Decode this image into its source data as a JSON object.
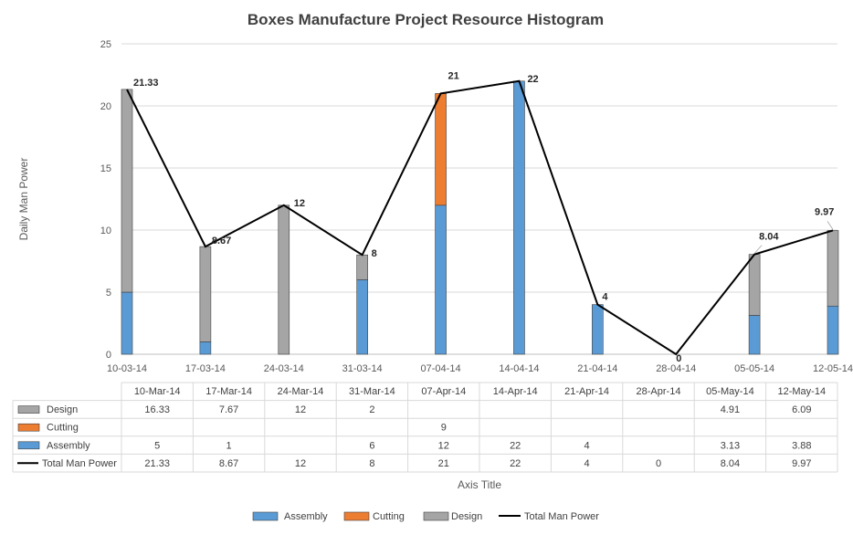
{
  "chart_data": {
    "type": "bar",
    "title": "Boxes Manufacture Project Resource Histogram",
    "ylabel": "Daily Man Power",
    "xlabel": "Axis Title",
    "ylim": [
      0,
      25
    ],
    "yticks": [
      0,
      5,
      10,
      15,
      20,
      25
    ],
    "grid": true,
    "legend_position": "bottom",
    "stacked": true,
    "x": [
      "10-03-14",
      "17-03-14",
      "24-03-14",
      "31-03-14",
      "07-04-14",
      "14-04-14",
      "21-04-14",
      "28-04-14",
      "05-05-14",
      "12-05-14"
    ],
    "table_headers": [
      "10-Mar-14",
      "17-Mar-14",
      "24-Mar-14",
      "31-Mar-14",
      "07-Apr-14",
      "14-Apr-14",
      "21-Apr-14",
      "28-Apr-14",
      "05-May-14",
      "12-May-14"
    ],
    "series": [
      {
        "name": "Assembly",
        "kind": "bar",
        "color": "#5B9BD5",
        "values": [
          5,
          1,
          null,
          6,
          12,
          22,
          4,
          null,
          3.13,
          3.88
        ],
        "labels": [
          "5",
          "1",
          "",
          "6",
          "12",
          "22",
          "4",
          "",
          "3.13",
          "3.88"
        ]
      },
      {
        "name": "Cutting",
        "kind": "bar",
        "color": "#ED7D31",
        "values": [
          null,
          null,
          null,
          null,
          9,
          null,
          null,
          null,
          null,
          null
        ],
        "labels": [
          "",
          "",
          "",
          "",
          "9",
          "",
          "",
          "",
          "",
          ""
        ]
      },
      {
        "name": "Design",
        "kind": "bar",
        "color": "#A5A5A5",
        "values": [
          16.33,
          7.67,
          12,
          2,
          null,
          null,
          null,
          null,
          4.91,
          6.09
        ],
        "labels": [
          "16.33",
          "7.67",
          "12",
          "2",
          "",
          "",
          "",
          "",
          "4.91",
          "6.09"
        ]
      },
      {
        "name": "Total Man Power",
        "kind": "line",
        "color": "#000000",
        "values": [
          21.33,
          8.67,
          12,
          8,
          21,
          22,
          4,
          0,
          8.04,
          9.97
        ],
        "labels": [
          "21.33",
          "8.67",
          "12",
          "8",
          "21",
          "22",
          "4",
          "0",
          "8.04",
          "9.97"
        ]
      }
    ],
    "table_row_order": [
      "Design",
      "Cutting",
      "Assembly",
      "Total Man Power"
    ],
    "legend_order": [
      "Assembly",
      "Cutting",
      "Design",
      "Total Man Power"
    ]
  }
}
